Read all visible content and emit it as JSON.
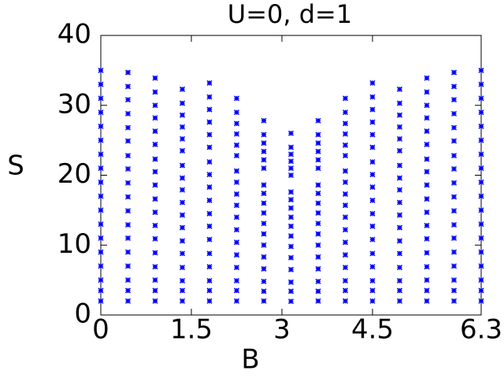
{
  "chart_data": {
    "type": "scatter",
    "title": "U=0, d=1",
    "x_label": "B",
    "y_label": "S",
    "x": [
      0,
      0.45,
      0.9,
      1.35,
      1.8,
      2.25,
      2.7,
      3.15,
      3.6,
      4.05,
      4.5,
      4.95,
      5.4,
      5.85,
      6.3
    ],
    "xlim": [
      0,
      6.3
    ],
    "xticks": [
      0,
      1.5,
      3,
      4.5,
      6.3
    ],
    "ylim": [
      0,
      40
    ],
    "yticks": [
      0,
      10,
      20,
      30,
      40
    ],
    "color": "#0000ff",
    "series": [
      {
        "values": [
          2,
          2,
          2,
          2,
          2,
          2,
          2,
          1.96,
          2,
          2,
          2,
          2,
          2,
          2,
          2
        ]
      },
      {
        "values": [
          3.5,
          3.5,
          3.5,
          3.5,
          3.5,
          3.5,
          3.4,
          3.4,
          3.4,
          3.5,
          3.5,
          3.5,
          3.5,
          3.5,
          3.5
        ]
      },
      {
        "values": [
          5,
          5,
          5,
          4.9,
          4.9,
          4.9,
          4.8,
          4.7,
          4.8,
          4.9,
          4.9,
          4.9,
          5,
          5,
          5
        ]
      },
      {
        "values": [
          7,
          7,
          6.9,
          6.8,
          6.9,
          6.8,
          6.6,
          6.5,
          6.6,
          6.8,
          6.9,
          6.8,
          6.9,
          7,
          7
        ]
      },
      {
        "values": [
          9,
          9,
          8.9,
          8.8,
          8.8,
          8.6,
          8.3,
          8.2,
          8.3,
          8.6,
          8.8,
          8.8,
          8.9,
          9,
          9
        ]
      },
      {
        "values": [
          11,
          11,
          10.9,
          10.6,
          10.8,
          10.4,
          10,
          9.8,
          10,
          10.4,
          10.8,
          10.6,
          10.9,
          11,
          11
        ]
      },
      {
        "values": [
          13,
          12.9,
          12.8,
          12.5,
          12.7,
          12.2,
          11.6,
          11.3,
          11.6,
          12.2,
          12.7,
          12.5,
          12.8,
          12.9,
          13
        ]
      },
      {
        "values": [
          15,
          14.9,
          14.7,
          14.3,
          14.5,
          14,
          13.1,
          12.7,
          13.1,
          14,
          14.5,
          14.3,
          14.7,
          14.9,
          15
        ]
      },
      {
        "values": [
          17,
          16.9,
          16.6,
          16.1,
          16.4,
          15.7,
          14.6,
          14,
          14.6,
          15.7,
          16.4,
          16.1,
          16.6,
          16.9,
          17
        ]
      },
      {
        "values": [
          19,
          18.9,
          18.6,
          17.9,
          18.3,
          17.3,
          16,
          15.3,
          16,
          17.3,
          18.3,
          17.9,
          18.6,
          18.9,
          19
        ]
      },
      {
        "values": [
          21,
          20.9,
          20.5,
          19.6,
          20.1,
          19,
          17.4,
          16.5,
          17.4,
          19,
          20.1,
          19.6,
          20.5,
          20.9,
          21
        ]
      },
      {
        "values": [
          23,
          22.8,
          22.3,
          21.4,
          21.9,
          20.6,
          18.6,
          17.6,
          18.6,
          20.6,
          21.9,
          21.4,
          22.3,
          22.8,
          23
        ]
      },
      {
        "values": [
          25,
          24.9,
          24.4,
          23.5,
          24,
          22.8,
          21,
          20,
          21,
          22.8,
          24,
          23.5,
          24.4,
          24.9,
          25
        ]
      },
      {
        "values": [
          27,
          26.8,
          26.3,
          25.2,
          25.8,
          24.3,
          22.2,
          21,
          22.2,
          24.3,
          25.8,
          25.2,
          26.3,
          26.8,
          27
        ]
      },
      {
        "values": [
          29,
          28.8,
          28.2,
          26.9,
          27.6,
          25.9,
          23.4,
          22,
          23.4,
          25.9,
          27.6,
          26.9,
          28.2,
          28.8,
          29
        ]
      },
      {
        "values": [
          31,
          30.8,
          30,
          28.6,
          29.4,
          27.4,
          24.6,
          23,
          24.6,
          27.4,
          29.4,
          28.6,
          30,
          30.8,
          31
        ]
      },
      {
        "values": [
          33,
          32.7,
          31.9,
          30.3,
          31.2,
          29,
          25.8,
          24,
          25.8,
          29,
          31.2,
          30.3,
          31.9,
          32.7,
          33
        ]
      },
      {
        "values": [
          35,
          34.7,
          33.9,
          32.3,
          33.2,
          31,
          27.8,
          26,
          27.8,
          31,
          33.2,
          32.3,
          33.9,
          34.7,
          35
        ]
      }
    ]
  }
}
